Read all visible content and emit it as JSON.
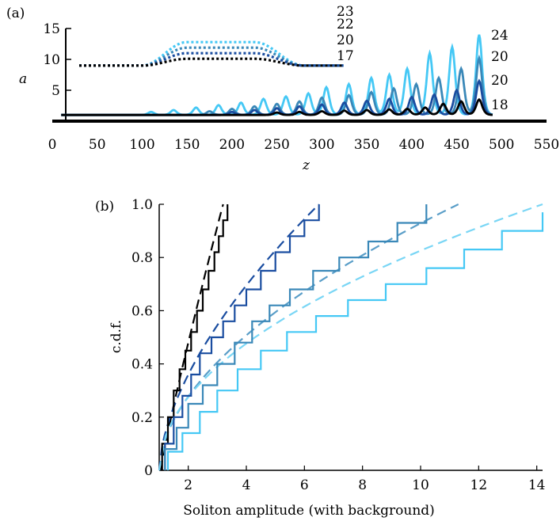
{
  "panel_a": {
    "panel_label": "(a)",
    "ylabel": "a",
    "xlabel": "z",
    "x_ticks": [
      "0",
      "50",
      "100",
      "150",
      "200",
      "250",
      "300",
      "350",
      "400",
      "450",
      "500",
      "550"
    ],
    "y_ticks": [
      "5",
      "10",
      "15"
    ],
    "dotted_labels": [
      "23",
      "22",
      "20",
      "17"
    ],
    "solid_labels": [
      "24",
      "20",
      "20",
      "18"
    ]
  },
  "panel_b": {
    "panel_label": "(b)",
    "ylabel": "c.d.f.",
    "xlabel": "Soliton amplitude (with background)",
    "x_ticks": [
      "2",
      "4",
      "6",
      "8",
      "10",
      "12",
      "14"
    ],
    "y_ticks": [
      "0",
      "0.2",
      "0.4",
      "0.6",
      "0.8",
      "1.0"
    ]
  },
  "chart_data": [
    {
      "type": "line",
      "xlim": [
        0,
        550
      ],
      "ylim": [
        0,
        15
      ],
      "series_colors": [
        "#45c8f5",
        "#3a88b8",
        "#1a4da0",
        "#000000"
      ],
      "solid_series": [
        {
          "label": "24",
          "color": "#45c8f5",
          "background": 1.0,
          "peaks_x": [
            110,
            135,
            160,
            185,
            210,
            235,
            260,
            285,
            305,
            330,
            355,
            375,
            395,
            420,
            445,
            475
          ],
          "peaks_y": [
            1.5,
            1.8,
            2.2,
            2.6,
            3.0,
            3.6,
            4.0,
            4.5,
            5.5,
            6.0,
            7.0,
            7.5,
            8.5,
            11.0,
            12.0,
            14.0
          ]
        },
        {
          "label": "20",
          "color": "#3a88b8",
          "background": 1.0,
          "peaks_x": [
            175,
            200,
            225,
            250,
            275,
            300,
            330,
            355,
            380,
            405,
            430,
            455,
            475
          ],
          "peaks_y": [
            1.6,
            2.0,
            2.4,
            2.8,
            3.2,
            3.8,
            4.2,
            4.7,
            5.3,
            6.0,
            7.0,
            8.5,
            10.2
          ]
        },
        {
          "label": "20",
          "color": "#1a4da0",
          "background": 1.0,
          "peaks_x": [
            200,
            225,
            250,
            275,
            300,
            325,
            350,
            375,
            400,
            425,
            450,
            475
          ],
          "peaks_y": [
            1.5,
            1.8,
            2.1,
            2.4,
            2.7,
            3.0,
            3.3,
            3.6,
            3.9,
            4.3,
            5.0,
            6.5
          ]
        },
        {
          "label": "18",
          "color": "#000000",
          "background": 1.0,
          "peaks_x": [
            250,
            275,
            300,
            325,
            350,
            375,
            395,
            415,
            435,
            455,
            475
          ],
          "peaks_y": [
            1.4,
            1.5,
            1.6,
            1.7,
            1.8,
            1.9,
            2.0,
            2.2,
            2.8,
            3.2,
            3.5
          ]
        }
      ],
      "dotted_series": [
        {
          "label": "23",
          "color": "#45c8f5",
          "x_start": 30,
          "x_end": 325,
          "base": 9.0,
          "plateau": 12.8,
          "rise": [
            100,
            150
          ],
          "fall": [
            225,
            280
          ]
        },
        {
          "label": "22",
          "color": "#3a88b8",
          "x_start": 30,
          "x_end": 325,
          "base": 9.0,
          "plateau": 11.9,
          "rise": [
            100,
            150
          ],
          "fall": [
            225,
            280
          ]
        },
        {
          "label": "20",
          "color": "#1a4da0",
          "x_start": 30,
          "x_end": 325,
          "base": 9.0,
          "plateau": 11.0,
          "rise": [
            100,
            150
          ],
          "fall": [
            225,
            280
          ]
        },
        {
          "label": "17",
          "color": "#000000",
          "x_start": 30,
          "x_end": 325,
          "base": 9.0,
          "plateau": 10.1,
          "rise": [
            100,
            150
          ],
          "fall": [
            225,
            280
          ]
        }
      ]
    },
    {
      "type": "line",
      "xlim": [
        1,
        14.2
      ],
      "ylim": [
        0,
        1
      ],
      "steps": [
        {
          "color": "#000000",
          "x": [
            1.1,
            1.3,
            1.5,
            1.7,
            1.9,
            2.1,
            2.3,
            2.5,
            2.7,
            2.9,
            3.05,
            3.2,
            3.35
          ],
          "y": [
            0.1,
            0.2,
            0.3,
            0.38,
            0.45,
            0.52,
            0.6,
            0.68,
            0.75,
            0.82,
            0.88,
            0.94,
            1.0
          ]
        },
        {
          "color": "#1a4da0",
          "x": [
            1.2,
            1.5,
            1.8,
            2.1,
            2.4,
            2.8,
            3.2,
            3.6,
            4.0,
            4.5,
            5.0,
            5.5,
            6.0,
            6.5
          ],
          "y": [
            0.1,
            0.2,
            0.28,
            0.36,
            0.44,
            0.5,
            0.56,
            0.62,
            0.68,
            0.75,
            0.82,
            0.88,
            0.94,
            1.0
          ]
        },
        {
          "color": "#3a88b8",
          "x": [
            1.2,
            1.6,
            2.0,
            2.5,
            3.0,
            3.6,
            4.2,
            4.8,
            5.5,
            6.3,
            7.2,
            8.2,
            9.2,
            10.2
          ],
          "y": [
            0.08,
            0.16,
            0.25,
            0.32,
            0.4,
            0.48,
            0.56,
            0.62,
            0.68,
            0.75,
            0.8,
            0.86,
            0.93,
            1.0
          ]
        },
        {
          "color": "#45c8f5",
          "x": [
            1.3,
            1.8,
            2.4,
            3.0,
            3.7,
            4.5,
            5.4,
            6.4,
            7.5,
            8.8,
            10.2,
            11.5,
            12.8,
            14.2
          ],
          "y": [
            0.07,
            0.14,
            0.22,
            0.3,
            0.38,
            0.45,
            0.52,
            0.58,
            0.64,
            0.7,
            0.76,
            0.83,
            0.9,
            0.97
          ]
        }
      ],
      "dashed": [
        {
          "color": "#000000",
          "x0": 1.05,
          "x1": 3.2,
          "y0": 0.0,
          "y1": 1.0,
          "power": 0.9
        },
        {
          "color": "#1a4da0",
          "x0": 1.0,
          "x1": 6.5,
          "y0": 0.0,
          "y1": 1.0,
          "power": 0.6
        },
        {
          "color": "#5a9ec8",
          "x0": 1.0,
          "x1": 11.3,
          "y0": 0.0,
          "y1": 1.0,
          "power": 0.55
        },
        {
          "color": "#7ad6f5",
          "x0": 1.0,
          "x1": 14.2,
          "y0": 0.0,
          "y1": 1.0,
          "power": 0.5
        }
      ]
    }
  ]
}
